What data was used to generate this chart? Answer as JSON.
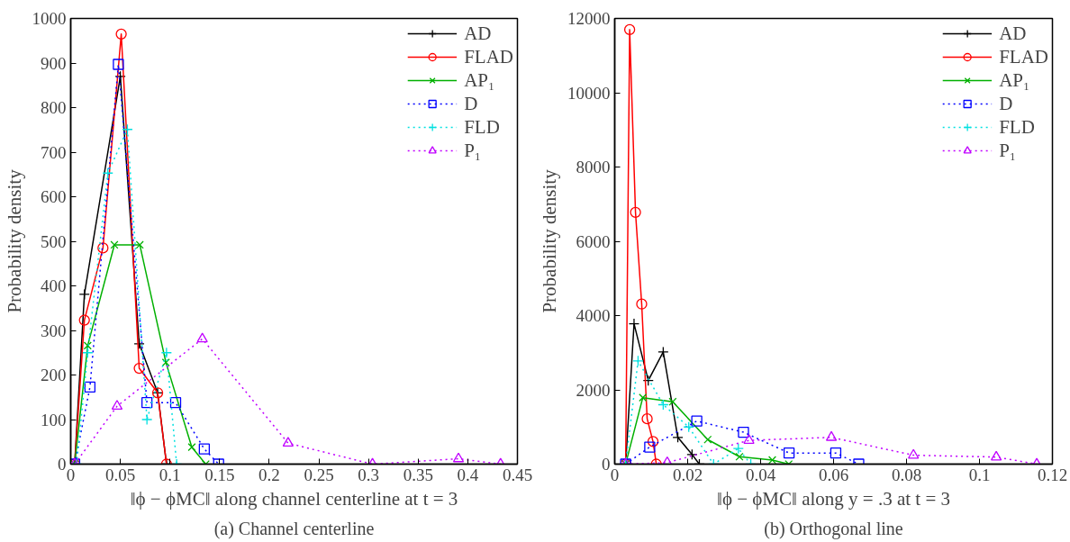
{
  "chart_data": [
    {
      "type": "line",
      "title": "(a) Channel centerline",
      "xlabel": "‖ϕ − ϕMC‖ along channel centerline at t = 3",
      "ylabel": "Probability density",
      "xlim": [
        0,
        0.45
      ],
      "xticks": [
        0,
        0.05,
        0.1,
        0.15,
        0.2,
        0.25,
        0.3,
        0.35,
        0.4,
        0.45
      ],
      "ylim": [
        0,
        1000
      ],
      "yticks": [
        0,
        100,
        200,
        300,
        400,
        500,
        600,
        700,
        800,
        900,
        1000
      ],
      "grid": false,
      "legend": "top right",
      "series": [
        {
          "name": "AD",
          "color": "#000000",
          "marker": "cross",
          "line_style": "solid",
          "x": [
            0.004,
            0.0138,
            0.05,
            0.069,
            0.0876,
            0.0965
          ],
          "values": [
            0,
            381,
            870,
            270,
            160,
            0
          ]
        },
        {
          "name": "FLAD",
          "color": "#ff0000",
          "marker": "circle",
          "line_style": "solid",
          "x": [
            0.004,
            0.0138,
            0.0325,
            0.0509,
            0.069,
            0.0876,
            0.0965
          ],
          "values": [
            0,
            323,
            485,
            965,
            215,
            160,
            0
          ]
        },
        {
          "name": "AP₁",
          "color": "#00b000",
          "marker": "x",
          "line_style": "solid",
          "x": [
            0.004,
            0.0171,
            0.044,
            0.0696,
            0.0959,
            0.122,
            0.136
          ],
          "values": [
            0,
            266,
            492,
            492,
            228,
            38,
            0
          ]
        },
        {
          "name": "D",
          "color": "#0000ff",
          "marker": "square",
          "line_style": "dotted",
          "x": [
            0.004,
            0.0194,
            0.048,
            0.0768,
            0.1057,
            0.1346,
            0.149
          ],
          "values": [
            0,
            173,
            897,
            138,
            138,
            34,
            0
          ]
        },
        {
          "name": "FLD",
          "color": "#00e0e0",
          "marker": "cross",
          "line_style": "dotted",
          "x": [
            0.006,
            0.0171,
            0.0374,
            0.0571,
            0.0768,
            0.0965,
            0.1067
          ],
          "values": [
            0,
            250,
            653,
            751,
            100,
            250,
            0
          ]
        },
        {
          "name": "P₁",
          "color": "#c000ff",
          "marker": "triangle",
          "line_style": "dotted",
          "x": [
            0.004,
            0.0467,
            0.1326,
            0.219,
            0.304,
            0.3906,
            0.433
          ],
          "values": [
            0,
            130,
            281,
            47,
            0,
            12,
            0
          ]
        }
      ]
    },
    {
      "type": "line",
      "title": "(b) Orthogonal line",
      "xlabel": "‖ϕ − ϕMC‖ along y = .3 at t = 3",
      "ylabel": "Probability density",
      "xlim": [
        0,
        0.12
      ],
      "xticks": [
        0,
        0.02,
        0.04,
        0.06,
        0.08,
        0.1,
        0.12
      ],
      "ylim": [
        0,
        12000
      ],
      "yticks": [
        0,
        2000,
        4000,
        6000,
        8000,
        10000,
        12000
      ],
      "grid": false,
      "legend": "top right",
      "series": [
        {
          "name": "AD",
          "color": "#000000",
          "marker": "cross",
          "line_style": "solid",
          "x": [
            0.003,
            0.0053,
            0.0092,
            0.0133,
            0.0173,
            0.0212,
            0.0232
          ],
          "values": [
            0,
            3780,
            2250,
            3020,
            720,
            260,
            0
          ]
        },
        {
          "name": "FLAD",
          "color": "#ff0000",
          "marker": "circle",
          "line_style": "solid",
          "x": [
            0.003,
            0.0041,
            0.0057,
            0.0074,
            0.0089,
            0.0105,
            0.0114
          ],
          "values": [
            0,
            11700,
            6780,
            4310,
            1220,
            610,
            0
          ]
        },
        {
          "name": "AP₁",
          "color": "#00b000",
          "marker": "x",
          "line_style": "solid",
          "x": [
            0.003,
            0.0077,
            0.0159,
            0.0255,
            0.0342,
            0.0432,
            0.0477
          ],
          "values": [
            0,
            1790,
            1680,
            660,
            200,
            110,
            0
          ]
        },
        {
          "name": "D",
          "color": "#0000ff",
          "marker": "square",
          "line_style": "dotted",
          "x": [
            0.003,
            0.0096,
            0.0225,
            0.0353,
            0.0478,
            0.0606,
            0.0669
          ],
          "values": [
            0,
            460,
            1160,
            860,
            300,
            300,
            0
          ]
        },
        {
          "name": "FLD",
          "color": "#00e0e0",
          "marker": "cross",
          "line_style": "dotted",
          "x": [
            0.003,
            0.0064,
            0.0133,
            0.0203,
            0.0271,
            0.0339,
            0.0373
          ],
          "values": [
            0,
            2780,
            1600,
            1000,
            0,
            420,
            0
          ]
        },
        {
          "name": "P₁",
          "color": "#c000ff",
          "marker": "triangle",
          "line_style": "dotted",
          "x": [
            0.003,
            0.0144,
            0.0368,
            0.0594,
            0.0819,
            0.1046,
            0.1157
          ],
          "values": [
            0,
            40,
            640,
            720,
            240,
            190,
            0
          ]
        }
      ]
    }
  ]
}
